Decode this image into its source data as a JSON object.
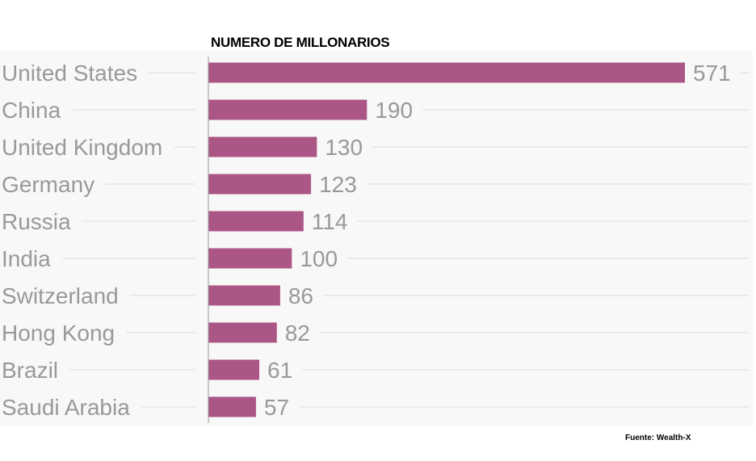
{
  "chart_data": {
    "type": "bar",
    "orientation": "horizontal",
    "title": "NUMERO DE MILLONARIOS",
    "categories": [
      "United States",
      "China",
      "United Kingdom",
      "Germany",
      "Russia",
      "India",
      "Switzerland",
      "Hong Kong",
      "Brazil",
      "Saudi Arabia"
    ],
    "values": [
      571,
      190,
      130,
      123,
      114,
      100,
      86,
      82,
      61,
      57
    ],
    "xlim": [
      0,
      571
    ],
    "grid": true,
    "bar_color": "#ab5685",
    "source": "Fuente: Wealth-X"
  }
}
